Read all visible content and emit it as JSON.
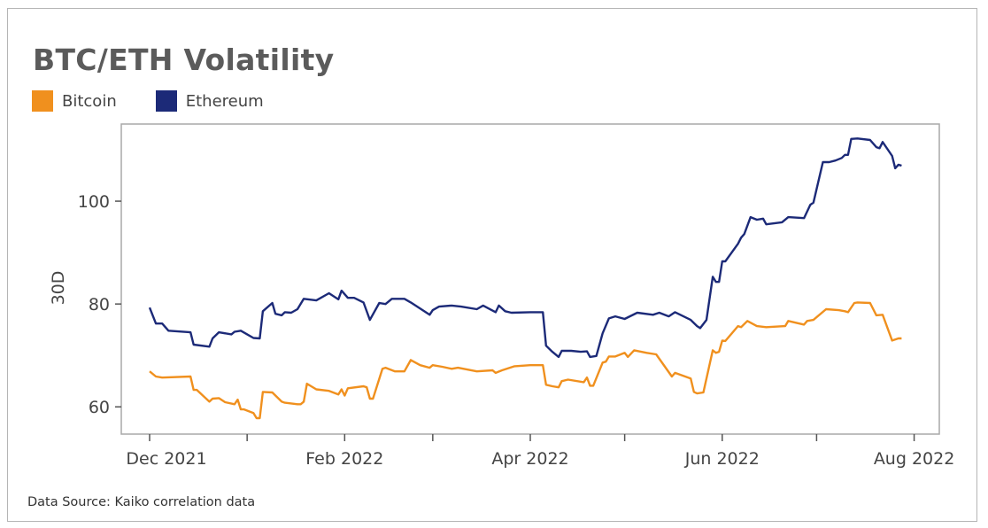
{
  "source_note": "Data Source: Kaiko correlation data",
  "chart_data": {
    "type": "line",
    "title": "BTC/ETH Volatility",
    "xlabel": "",
    "ylabel": "30D",
    "xlim": [
      "2021-11-22",
      "2022-08-09"
    ],
    "ylim": [
      54.7,
      115
    ],
    "x_ticks": [
      {
        "date": "2021-12-01",
        "label": "Dec 2021"
      },
      {
        "date": "2022-01-01",
        "label": ""
      },
      {
        "date": "2022-02-01",
        "label": "Feb 2022"
      },
      {
        "date": "2022-03-01",
        "label": ""
      },
      {
        "date": "2022-04-01",
        "label": "Apr 2022"
      },
      {
        "date": "2022-05-01",
        "label": ""
      },
      {
        "date": "2022-06-01",
        "label": "Jun 2022"
      },
      {
        "date": "2022-07-01",
        "label": ""
      },
      {
        "date": "2022-08-01",
        "label": "Aug 2022"
      }
    ],
    "y_ticks": [
      60,
      80,
      100
    ],
    "grid": false,
    "legend_position": "top-left",
    "series": [
      {
        "name": "Bitcoin",
        "color": "#f0901e",
        "points": [
          [
            "2021-12-01",
            66.9
          ],
          [
            "2021-12-03",
            65.9
          ],
          [
            "2021-12-05",
            65.7
          ],
          [
            "2021-12-14",
            65.9
          ],
          [
            "2021-12-15",
            63.3
          ],
          [
            "2021-12-16",
            63.3
          ],
          [
            "2021-12-20",
            61.0
          ],
          [
            "2021-12-21",
            61.6
          ],
          [
            "2021-12-23",
            61.7
          ],
          [
            "2021-12-25",
            60.9
          ],
          [
            "2021-12-28",
            60.5
          ],
          [
            "2021-12-29",
            61.4
          ],
          [
            "2021-12-30",
            59.5
          ],
          [
            "2021-12-31",
            59.5
          ],
          [
            "2022-01-03",
            58.8
          ],
          [
            "2022-01-04",
            57.8
          ],
          [
            "2022-01-05",
            57.8
          ],
          [
            "2022-01-06",
            62.9
          ],
          [
            "2022-01-09",
            62.8
          ],
          [
            "2022-01-12",
            61.0
          ],
          [
            "2022-01-13",
            60.8
          ],
          [
            "2022-01-17",
            60.5
          ],
          [
            "2022-01-18",
            60.5
          ],
          [
            "2022-01-19",
            61.0
          ],
          [
            "2022-01-20",
            64.5
          ],
          [
            "2022-01-23",
            63.4
          ],
          [
            "2022-01-27",
            63.1
          ],
          [
            "2022-01-30",
            62.4
          ],
          [
            "2022-01-31",
            63.4
          ],
          [
            "2022-02-01",
            62.2
          ],
          [
            "2022-02-02",
            63.6
          ],
          [
            "2022-02-07",
            64.0
          ],
          [
            "2022-02-08",
            63.8
          ],
          [
            "2022-02-09",
            61.6
          ],
          [
            "2022-02-10",
            61.6
          ],
          [
            "2022-02-13",
            67.4
          ],
          [
            "2022-02-14",
            67.6
          ],
          [
            "2022-02-17",
            66.9
          ],
          [
            "2022-02-20",
            66.9
          ],
          [
            "2022-02-22",
            69.1
          ],
          [
            "2022-02-25",
            68.1
          ],
          [
            "2022-02-28",
            67.6
          ],
          [
            "2022-03-01",
            68.1
          ],
          [
            "2022-03-04",
            67.8
          ],
          [
            "2022-03-07",
            67.4
          ],
          [
            "2022-03-09",
            67.6
          ],
          [
            "2022-03-15",
            66.9
          ],
          [
            "2022-03-20",
            67.1
          ],
          [
            "2022-03-21",
            66.6
          ],
          [
            "2022-03-23",
            67.1
          ],
          [
            "2022-03-27",
            67.9
          ],
          [
            "2022-04-01",
            68.1
          ],
          [
            "2022-04-05",
            68.1
          ],
          [
            "2022-04-06",
            64.3
          ],
          [
            "2022-04-08",
            64.0
          ],
          [
            "2022-04-10",
            63.8
          ],
          [
            "2022-04-11",
            65.0
          ],
          [
            "2022-04-13",
            65.3
          ],
          [
            "2022-04-18",
            64.8
          ],
          [
            "2022-04-19",
            65.7
          ],
          [
            "2022-04-20",
            64.1
          ],
          [
            "2022-04-21",
            64.1
          ],
          [
            "2022-04-24",
            68.6
          ],
          [
            "2022-04-25",
            68.8
          ],
          [
            "2022-04-26",
            69.8
          ],
          [
            "2022-04-28",
            69.8
          ],
          [
            "2022-05-01",
            70.5
          ],
          [
            "2022-05-02",
            69.7
          ],
          [
            "2022-05-04",
            71.0
          ],
          [
            "2022-05-08",
            70.5
          ],
          [
            "2022-05-11",
            70.2
          ],
          [
            "2022-05-16",
            65.9
          ],
          [
            "2022-05-17",
            66.6
          ],
          [
            "2022-05-22",
            65.5
          ],
          [
            "2022-05-23",
            62.9
          ],
          [
            "2022-05-24",
            62.6
          ],
          [
            "2022-05-26",
            62.8
          ],
          [
            "2022-05-29",
            71.0
          ],
          [
            "2022-05-30",
            70.5
          ],
          [
            "2022-05-31",
            70.7
          ],
          [
            "2022-06-01",
            72.9
          ],
          [
            "2022-06-02",
            72.8
          ],
          [
            "2022-06-06",
            75.7
          ],
          [
            "2022-06-07",
            75.5
          ],
          [
            "2022-06-09",
            76.7
          ],
          [
            "2022-06-12",
            75.7
          ],
          [
            "2022-06-15",
            75.5
          ],
          [
            "2022-06-21",
            75.7
          ],
          [
            "2022-06-22",
            76.7
          ],
          [
            "2022-06-27",
            76.0
          ],
          [
            "2022-06-28",
            76.7
          ],
          [
            "2022-06-30",
            76.9
          ],
          [
            "2022-07-04",
            79.0
          ],
          [
            "2022-07-08",
            78.8
          ],
          [
            "2022-07-10",
            78.6
          ],
          [
            "2022-07-11",
            78.4
          ],
          [
            "2022-07-13",
            80.2
          ],
          [
            "2022-07-14",
            80.3
          ],
          [
            "2022-07-18",
            80.2
          ],
          [
            "2022-07-20",
            77.8
          ],
          [
            "2022-07-22",
            77.9
          ],
          [
            "2022-07-25",
            72.9
          ],
          [
            "2022-07-27",
            73.3
          ],
          [
            "2022-07-28",
            73.3
          ]
        ]
      },
      {
        "name": "Ethereum",
        "color": "#1c2a78",
        "points": [
          [
            "2021-12-01",
            79.3
          ],
          [
            "2021-12-03",
            76.2
          ],
          [
            "2021-12-05",
            76.2
          ],
          [
            "2021-12-07",
            74.8
          ],
          [
            "2021-12-14",
            74.5
          ],
          [
            "2021-12-15",
            72.1
          ],
          [
            "2021-12-20",
            71.7
          ],
          [
            "2021-12-21",
            73.3
          ],
          [
            "2021-12-23",
            74.5
          ],
          [
            "2021-12-27",
            74.1
          ],
          [
            "2021-12-28",
            74.6
          ],
          [
            "2021-12-30",
            74.8
          ],
          [
            "2022-01-03",
            73.4
          ],
          [
            "2022-01-05",
            73.3
          ],
          [
            "2022-01-06",
            78.6
          ],
          [
            "2022-01-09",
            80.2
          ],
          [
            "2022-01-10",
            78.1
          ],
          [
            "2022-01-12",
            77.8
          ],
          [
            "2022-01-13",
            78.4
          ],
          [
            "2022-01-15",
            78.3
          ],
          [
            "2022-01-17",
            79.0
          ],
          [
            "2022-01-19",
            81.0
          ],
          [
            "2022-01-23",
            80.7
          ],
          [
            "2022-01-27",
            82.1
          ],
          [
            "2022-01-30",
            80.9
          ],
          [
            "2022-01-31",
            82.6
          ],
          [
            "2022-02-02",
            81.2
          ],
          [
            "2022-02-04",
            81.2
          ],
          [
            "2022-02-07",
            80.3
          ],
          [
            "2022-02-09",
            76.9
          ],
          [
            "2022-02-12",
            80.2
          ],
          [
            "2022-02-14",
            80.0
          ],
          [
            "2022-02-16",
            81.0
          ],
          [
            "2022-02-20",
            81.0
          ],
          [
            "2022-02-22",
            80.3
          ],
          [
            "2022-02-28",
            77.9
          ],
          [
            "2022-03-01",
            78.8
          ],
          [
            "2022-03-03",
            79.5
          ],
          [
            "2022-03-07",
            79.7
          ],
          [
            "2022-03-10",
            79.5
          ],
          [
            "2022-03-15",
            79.0
          ],
          [
            "2022-03-17",
            79.7
          ],
          [
            "2022-03-21",
            78.4
          ],
          [
            "2022-03-22",
            79.7
          ],
          [
            "2022-03-24",
            78.6
          ],
          [
            "2022-03-26",
            78.3
          ],
          [
            "2022-04-01",
            78.4
          ],
          [
            "2022-04-05",
            78.4
          ],
          [
            "2022-04-06",
            71.9
          ],
          [
            "2022-04-08",
            70.7
          ],
          [
            "2022-04-10",
            69.7
          ],
          [
            "2022-04-11",
            70.9
          ],
          [
            "2022-04-14",
            70.9
          ],
          [
            "2022-04-17",
            70.7
          ],
          [
            "2022-04-19",
            70.8
          ],
          [
            "2022-04-20",
            69.7
          ],
          [
            "2022-04-22",
            69.9
          ],
          [
            "2022-04-24",
            74.3
          ],
          [
            "2022-04-26",
            77.2
          ],
          [
            "2022-04-28",
            77.6
          ],
          [
            "2022-05-01",
            77.1
          ],
          [
            "2022-05-05",
            78.3
          ],
          [
            "2022-05-10",
            77.9
          ],
          [
            "2022-05-12",
            78.3
          ],
          [
            "2022-05-15",
            77.6
          ],
          [
            "2022-05-17",
            78.4
          ],
          [
            "2022-05-22",
            76.9
          ],
          [
            "2022-05-24",
            75.7
          ],
          [
            "2022-05-25",
            75.3
          ],
          [
            "2022-05-27",
            76.9
          ],
          [
            "2022-05-29",
            85.3
          ],
          [
            "2022-05-30",
            84.3
          ],
          [
            "2022-05-31",
            84.3
          ],
          [
            "2022-06-01",
            88.3
          ],
          [
            "2022-06-02",
            88.3
          ],
          [
            "2022-06-06",
            91.7
          ],
          [
            "2022-06-07",
            92.9
          ],
          [
            "2022-06-08",
            93.6
          ],
          [
            "2022-06-10",
            96.9
          ],
          [
            "2022-06-12",
            96.4
          ],
          [
            "2022-06-14",
            96.6
          ],
          [
            "2022-06-15",
            95.5
          ],
          [
            "2022-06-20",
            95.9
          ],
          [
            "2022-06-22",
            96.9
          ],
          [
            "2022-06-27",
            96.7
          ],
          [
            "2022-06-29",
            99.3
          ],
          [
            "2022-06-30",
            99.7
          ],
          [
            "2022-07-03",
            107.6
          ],
          [
            "2022-07-05",
            107.6
          ],
          [
            "2022-07-07",
            107.9
          ],
          [
            "2022-07-09",
            108.4
          ],
          [
            "2022-07-10",
            109.0
          ],
          [
            "2022-07-11",
            109.0
          ],
          [
            "2022-07-12",
            112.1
          ],
          [
            "2022-07-14",
            112.2
          ],
          [
            "2022-07-18",
            111.9
          ],
          [
            "2022-07-20",
            110.5
          ],
          [
            "2022-07-21",
            110.3
          ],
          [
            "2022-07-22",
            111.5
          ],
          [
            "2022-07-25",
            108.8
          ],
          [
            "2022-07-26",
            106.4
          ],
          [
            "2022-07-27",
            107.1
          ],
          [
            "2022-07-28",
            106.9
          ]
        ]
      }
    ]
  }
}
